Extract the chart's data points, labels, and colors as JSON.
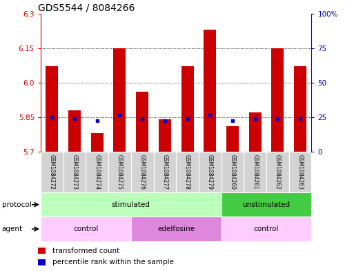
{
  "title": "GDS5544 / 8084266",
  "samples": [
    "GSM1084272",
    "GSM1084273",
    "GSM1084274",
    "GSM1084275",
    "GSM1084276",
    "GSM1084277",
    "GSM1084278",
    "GSM1084279",
    "GSM1084260",
    "GSM1084261",
    "GSM1084262",
    "GSM1084263"
  ],
  "bar_values": [
    6.07,
    5.88,
    5.78,
    6.15,
    5.96,
    5.84,
    6.07,
    6.23,
    5.81,
    5.87,
    6.15,
    6.07
  ],
  "dot_values": [
    5.85,
    5.845,
    5.835,
    5.86,
    5.845,
    5.835,
    5.845,
    5.86,
    5.835,
    5.845,
    5.845,
    5.845
  ],
  "ylim": [
    5.7,
    6.3
  ],
  "yticks": [
    5.7,
    5.85,
    6.0,
    6.15,
    6.3
  ],
  "right_yticks": [
    0,
    25,
    50,
    75,
    100
  ],
  "right_ylim": [
    0,
    100
  ],
  "bar_color": "#cc0000",
  "dot_color": "#0000cc",
  "protocol_labels": [
    {
      "text": "stimulated",
      "start": 0,
      "end": 7,
      "color": "#bbffbb"
    },
    {
      "text": "unstimulated",
      "start": 8,
      "end": 11,
      "color": "#44cc44"
    }
  ],
  "agent_labels": [
    {
      "text": "control",
      "start": 0,
      "end": 3,
      "color": "#ffccff"
    },
    {
      "text": "edelfosine",
      "start": 4,
      "end": 7,
      "color": "#dd88dd"
    },
    {
      "text": "control",
      "start": 8,
      "end": 11,
      "color": "#ffccff"
    }
  ],
  "protocol_row_label": "protocol",
  "agent_row_label": "agent",
  "legend_items": [
    {
      "label": "transformed count",
      "color": "#cc0000"
    },
    {
      "label": "percentile rank within the sample",
      "color": "#0000cc"
    }
  ],
  "bar_width": 0.55,
  "title_fontsize": 10,
  "ytick_fontsize": 7.5,
  "left_tick_color": "#cc0000",
  "right_tick_color": "#0000cc"
}
